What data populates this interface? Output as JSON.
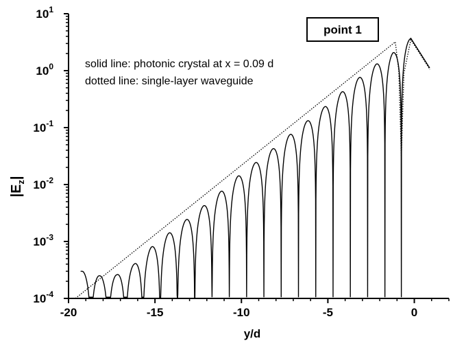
{
  "chart_data": {
    "type": "line",
    "xlabel": "y/d",
    "ylabel_main": "|E",
    "ylabel_sub": "z",
    "ylabel_end": "|",
    "xlim": [
      -20,
      2
    ],
    "ylim": [
      0.0001,
      10
    ],
    "yscale": "log",
    "x_ticks": [
      -20,
      -15,
      -10,
      -5,
      0
    ],
    "x_tick_labels": [
      "-20",
      "-15",
      "-10",
      "-5",
      "0"
    ],
    "y_ticks": [
      {
        "value": 0.0001,
        "base": "10",
        "exp": "-4"
      },
      {
        "value": 0.001,
        "base": "10",
        "exp": "-3"
      },
      {
        "value": 0.01,
        "base": "10",
        "exp": "-2"
      },
      {
        "value": 0.1,
        "base": "10",
        "exp": "-1"
      },
      {
        "value": 1,
        "base": "10",
        "exp": "0"
      },
      {
        "value": 10,
        "base": "10",
        "exp": "1"
      }
    ],
    "legend_box": "point 1",
    "annotations": [
      "solid line:  photonic crystal at x = 0.09 d",
      "dotted line: single-layer waveguide"
    ],
    "grid": false,
    "series": [
      {
        "style": "solid",
        "envelope_x": [
          -19.2,
          -18.2,
          -17.2,
          -16.2,
          -15.2,
          -14.2,
          -13.2,
          -12.2,
          -11.2,
          -10.2,
          -9.2,
          -8.2,
          -7.2,
          -6.2,
          -5.2,
          -4.2,
          -3.2,
          -2.2,
          -1.2,
          -0.2
        ],
        "envelope_y": [
          0.0003,
          0.00025,
          0.00026,
          0.0004,
          0.0008,
          0.0014,
          0.0024,
          0.0042,
          0.0075,
          0.014,
          0.024,
          0.042,
          0.075,
          0.13,
          0.23,
          0.42,
          0.75,
          1.3,
          2.1,
          3.7
        ],
        "zeros_x": [
          -18.7,
          -17.7,
          -16.7,
          -15.7,
          -14.7,
          -13.7,
          -12.7,
          -11.7,
          -10.7,
          -9.7,
          -8.7,
          -7.7,
          -6.7,
          -5.7,
          -4.7,
          -3.7,
          -2.7,
          -1.7,
          -0.75
        ],
        "x_start": -19.3,
        "x_end": 0.9,
        "end_y": 1.1
      },
      {
        "style": "dotted",
        "x": [
          -19.6,
          -1.1,
          -0.9,
          -0.75,
          -0.6,
          -0.2,
          0.9
        ],
        "y": [
          0.0001,
          3.2,
          1.0,
          0.03,
          0.9,
          3.5,
          1.05
        ]
      }
    ]
  }
}
